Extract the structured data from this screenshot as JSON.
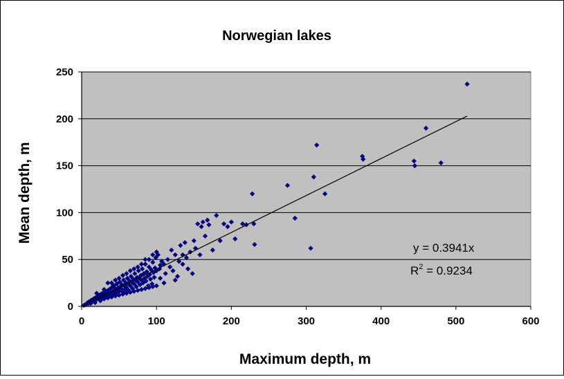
{
  "chart_data": {
    "type": "scatter",
    "title": "Norwegian lakes",
    "xlabel": "Maximum depth, m",
    "ylabel": "Mean depth, m",
    "xlim": [
      0,
      600
    ],
    "ylim": [
      0,
      250
    ],
    "x_ticks": [
      "0",
      "100",
      "200",
      "300",
      "400",
      "500",
      "600"
    ],
    "y_ticks": [
      "0",
      "50",
      "100",
      "150",
      "200",
      "250"
    ],
    "grid": "horizontal",
    "legend": "none",
    "colors": {
      "plot_background": "#c0c0c0",
      "marker": "#000080",
      "trendline": "#000000",
      "gridline": "#000000"
    },
    "marker_shape": "diamond",
    "trendline": {
      "type": "linear-through-origin",
      "slope": 0.3941,
      "x_range": [
        0,
        515
      ]
    },
    "annotations": {
      "equation": "y = 0.3941x",
      "r2_prefix": "R",
      "r2_exponent": "2",
      "r2_value": " = 0.9234"
    },
    "series": [
      {
        "points": [
          [
            5,
            2
          ],
          [
            7,
            3
          ],
          [
            8,
            4
          ],
          [
            9,
            3
          ],
          [
            10,
            5
          ],
          [
            11,
            4
          ],
          [
            12,
            6
          ],
          [
            13,
            5
          ],
          [
            14,
            7
          ],
          [
            15,
            6
          ],
          [
            16,
            8
          ],
          [
            17,
            5
          ],
          [
            18,
            9
          ],
          [
            19,
            7
          ],
          [
            20,
            10
          ],
          [
            21,
            8
          ],
          [
            22,
            11
          ],
          [
            23,
            9
          ],
          [
            24,
            12
          ],
          [
            25,
            10
          ],
          [
            26,
            13
          ],
          [
            27,
            8
          ],
          [
            28,
            14
          ],
          [
            29,
            11
          ],
          [
            30,
            12
          ],
          [
            31,
            15
          ],
          [
            32,
            10
          ],
          [
            33,
            16
          ],
          [
            34,
            13
          ],
          [
            35,
            17
          ],
          [
            36,
            12
          ],
          [
            37,
            18
          ],
          [
            38,
            14
          ],
          [
            39,
            15
          ],
          [
            40,
            20
          ],
          [
            41,
            13
          ],
          [
            42,
            16
          ],
          [
            43,
            22
          ],
          [
            44,
            17
          ],
          [
            45,
            19
          ],
          [
            46,
            14
          ],
          [
            47,
            24
          ],
          [
            48,
            18
          ],
          [
            49,
            20
          ],
          [
            50,
            16
          ],
          [
            51,
            26
          ],
          [
            52,
            21
          ],
          [
            53,
            19
          ],
          [
            54,
            23
          ],
          [
            55,
            15
          ],
          [
            56,
            28
          ],
          [
            57,
            22
          ],
          [
            58,
            18
          ],
          [
            59,
            25
          ],
          [
            60,
            20
          ],
          [
            61,
            30
          ],
          [
            62,
            24
          ],
          [
            63,
            17
          ],
          [
            64,
            27
          ],
          [
            65,
            22
          ],
          [
            66,
            32
          ],
          [
            67,
            26
          ],
          [
            68,
            19
          ],
          [
            69,
            29
          ],
          [
            70,
            24
          ],
          [
            71,
            35
          ],
          [
            72,
            28
          ],
          [
            73,
            21
          ],
          [
            74,
            31
          ],
          [
            75,
            26
          ],
          [
            76,
            38
          ],
          [
            77,
            30
          ],
          [
            78,
            23
          ],
          [
            79,
            33
          ],
          [
            80,
            28
          ],
          [
            81,
            40
          ],
          [
            82,
            25
          ],
          [
            83,
            35
          ],
          [
            84,
            30
          ],
          [
            85,
            45
          ],
          [
            86,
            27
          ],
          [
            87,
            37
          ],
          [
            88,
            32
          ],
          [
            89,
            22
          ],
          [
            90,
            42
          ],
          [
            91,
            34
          ],
          [
            92,
            29
          ],
          [
            93,
            39
          ],
          [
            94,
            24
          ],
          [
            95,
            47
          ],
          [
            96,
            36
          ],
          [
            97,
            31
          ],
          [
            98,
            41
          ],
          [
            99,
            52
          ],
          [
            100,
            38
          ],
          [
            102,
            55
          ],
          [
            104,
            40
          ],
          [
            105,
            30
          ],
          [
            107,
            48
          ],
          [
            110,
            45
          ],
          [
            112,
            35
          ],
          [
            115,
            50
          ],
          [
            118,
            42
          ],
          [
            120,
            60
          ],
          [
            122,
            38
          ],
          [
            125,
            55
          ],
          [
            128,
            32
          ],
          [
            130,
            48
          ],
          [
            132,
            65
          ],
          [
            135,
            45
          ],
          [
            138,
            68
          ],
          [
            140,
            52
          ],
          [
            142,
            40
          ],
          [
            145,
            58
          ],
          [
            148,
            35
          ],
          [
            150,
            70
          ],
          [
            152,
            62
          ],
          [
            155,
            88
          ],
          [
            158,
            55
          ],
          [
            160,
            85
          ],
          [
            162,
            90
          ],
          [
            165,
            75
          ],
          [
            168,
            92
          ],
          [
            170,
            87
          ],
          [
            175,
            60
          ],
          [
            180,
            97
          ],
          [
            185,
            70
          ],
          [
            190,
            88
          ],
          [
            195,
            85
          ],
          [
            200,
            90
          ],
          [
            205,
            72
          ],
          [
            215,
            88
          ],
          [
            220,
            87
          ],
          [
            228,
            120
          ],
          [
            230,
            88
          ],
          [
            231,
            66
          ],
          [
            275,
            129
          ],
          [
            285,
            94
          ],
          [
            306,
            62
          ],
          [
            310,
            138
          ],
          [
            314,
            172
          ],
          [
            325,
            120
          ],
          [
            375,
            160
          ],
          [
            376,
            157
          ],
          [
            444,
            155
          ],
          [
            445,
            150
          ],
          [
            460,
            190
          ],
          [
            480,
            153
          ],
          [
            515,
            237
          ],
          [
            3,
            1
          ],
          [
            6,
            2
          ],
          [
            12,
            3
          ],
          [
            18,
            4
          ],
          [
            25,
            6
          ],
          [
            30,
            8
          ],
          [
            35,
            9
          ],
          [
            40,
            10
          ],
          [
            45,
            11
          ],
          [
            50,
            12
          ],
          [
            55,
            13
          ],
          [
            60,
            14
          ],
          [
            65,
            15
          ],
          [
            70,
            16
          ],
          [
            75,
            17
          ],
          [
            80,
            18
          ],
          [
            85,
            19
          ],
          [
            90,
            20
          ],
          [
            95,
            21
          ],
          [
            100,
            22
          ],
          [
            20,
            14
          ],
          [
            30,
            18
          ],
          [
            40,
            25
          ],
          [
            50,
            30
          ],
          [
            60,
            35
          ],
          [
            70,
            40
          ],
          [
            80,
            45
          ],
          [
            90,
            50
          ],
          [
            100,
            58
          ],
          [
            110,
            25
          ],
          [
            35,
            25
          ],
          [
            45,
            28
          ],
          [
            55,
            33
          ],
          [
            65,
            38
          ],
          [
            75,
            42
          ],
          [
            85,
            50
          ],
          [
            95,
            55
          ],
          [
            105,
            44
          ],
          [
            125,
            28
          ],
          [
            135,
            55
          ]
        ]
      }
    ]
  }
}
